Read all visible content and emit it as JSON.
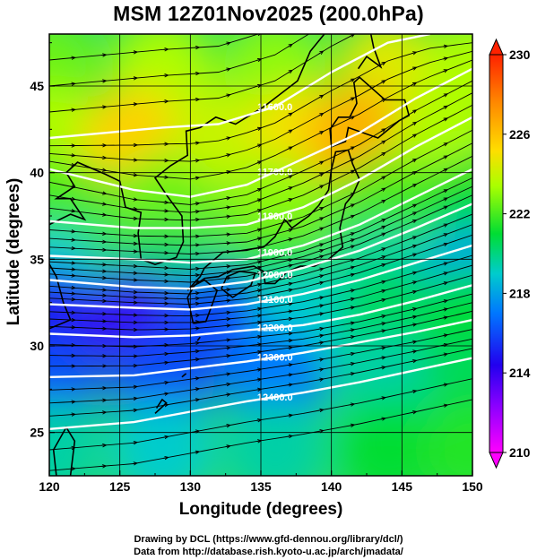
{
  "title": "MSM 12Z01Nov2025 (200.0hPa)",
  "credits": {
    "line1": "Drawing by DCL (https://www.gfd-dennou.org/library/dcl/)",
    "line2": "Data from http://database.rish.kyoto-u.ac.jp/arch/jmadata/"
  },
  "chart_data": {
    "type": "heatmap",
    "title": "MSM 12Z01Nov2025 (200.0hPa)",
    "xlabel": "Longitude (degrees)",
    "ylabel": "Latitude  (degrees)",
    "xlim": [
      120,
      150
    ],
    "ylim": [
      22.5,
      48
    ],
    "xticks": [
      "120",
      "125",
      "130",
      "135",
      "140",
      "145",
      "150"
    ],
    "yticks": [
      "25",
      "30",
      "35",
      "40",
      "45"
    ],
    "grid": true,
    "colorbar": {
      "min": 210,
      "max": 230,
      "ticks": [
        "210",
        "214",
        "218",
        "222",
        "226",
        "230"
      ],
      "colors": [
        "#ff00ff",
        "#2200ff",
        "#0088ff",
        "#00ddcc",
        "#00dd33",
        "#aaff00",
        "#ffdd00",
        "#ff8800",
        "#ff2200"
      ]
    },
    "contours": [
      {
        "label": "11600.0",
        "lat_at_lon": [
          [
            120,
            42.0
          ],
          [
            128,
            42.6
          ],
          [
            132,
            42.8
          ],
          [
            136,
            43.8
          ],
          [
            140,
            45.8
          ],
          [
            144,
            47.5
          ],
          [
            147,
            48
          ]
        ]
      },
      {
        "label": "11700.0",
        "lat_at_lon": [
          [
            120,
            40.2
          ],
          [
            126,
            39.0
          ],
          [
            130,
            38.6
          ],
          [
            134,
            39.3
          ],
          [
            138,
            40.8
          ],
          [
            142,
            42.3
          ],
          [
            146,
            44.3
          ],
          [
            150,
            46.0
          ]
        ]
      },
      {
        "label": "11800.0",
        "lat_at_lon": [
          [
            120,
            37.2
          ],
          [
            126,
            36.8
          ],
          [
            130,
            36.8
          ],
          [
            134,
            37.0
          ],
          [
            138,
            38.0
          ],
          [
            142,
            39.6
          ],
          [
            146,
            41.5
          ],
          [
            150,
            43.2
          ]
        ]
      },
      {
        "label": "11900.0",
        "lat_at_lon": [
          [
            120,
            35.2
          ],
          [
            126,
            35.0
          ],
          [
            130,
            34.8
          ],
          [
            134,
            35.0
          ],
          [
            138,
            35.8
          ],
          [
            142,
            37.0
          ],
          [
            146,
            38.6
          ],
          [
            150,
            40.2
          ]
        ]
      },
      {
        "label": "12000.0",
        "lat_at_lon": [
          [
            120,
            33.8
          ],
          [
            126,
            33.4
          ],
          [
            130,
            33.3
          ],
          [
            134,
            33.7
          ],
          [
            138,
            34.5
          ],
          [
            142,
            35.5
          ],
          [
            146,
            36.8
          ],
          [
            150,
            38.2
          ]
        ]
      },
      {
        "label": "12100.0",
        "lat_at_lon": [
          [
            120,
            32.4
          ],
          [
            126,
            32.2
          ],
          [
            130,
            32.1
          ],
          [
            134,
            32.4
          ],
          [
            138,
            33.0
          ],
          [
            142,
            33.8
          ],
          [
            146,
            34.8
          ],
          [
            150,
            35.8
          ]
        ]
      },
      {
        "label": "12200.0",
        "lat_at_lon": [
          [
            120,
            30.7
          ],
          [
            126,
            30.5
          ],
          [
            130,
            30.6
          ],
          [
            134,
            30.9
          ],
          [
            138,
            31.2
          ],
          [
            142,
            31.8
          ],
          [
            146,
            32.6
          ],
          [
            150,
            33.5
          ]
        ]
      },
      {
        "label": "12300.0",
        "lat_at_lon": [
          [
            120,
            28.2
          ],
          [
            126,
            28.3
          ],
          [
            130,
            28.7
          ],
          [
            134,
            29.1
          ],
          [
            138,
            29.6
          ],
          [
            142,
            30.2
          ],
          [
            146,
            30.8
          ],
          [
            150,
            31.5
          ]
        ]
      },
      {
        "label": "12400.0",
        "lat_at_lon": [
          [
            120,
            25.2
          ],
          [
            126,
            25.6
          ],
          [
            130,
            26.2
          ],
          [
            134,
            26.8
          ],
          [
            138,
            27.3
          ],
          [
            142,
            27.9
          ],
          [
            146,
            28.6
          ],
          [
            150,
            29.3
          ]
        ]
      }
    ],
    "temperature_field": [
      {
        "lon": 120,
        "lat": 46,
        "value": 222.5
      },
      {
        "lon": 128,
        "lat": 46,
        "value": 223.5
      },
      {
        "lon": 136,
        "lat": 46,
        "value": 223.0
      },
      {
        "lon": 144,
        "lat": 46,
        "value": 224.5
      },
      {
        "lon": 150,
        "lat": 46,
        "value": 223.5
      },
      {
        "lon": 120,
        "lat": 42,
        "value": 223.5
      },
      {
        "lon": 126,
        "lat": 42,
        "value": 225.5
      },
      {
        "lon": 132,
        "lat": 42,
        "value": 224.0
      },
      {
        "lon": 138,
        "lat": 42,
        "value": 225.0
      },
      {
        "lon": 142,
        "lat": 42,
        "value": 226.5
      },
      {
        "lon": 148,
        "lat": 42,
        "value": 223.5
      },
      {
        "lon": 120,
        "lat": 38,
        "value": 222.0
      },
      {
        "lon": 128,
        "lat": 38,
        "value": 222.5
      },
      {
        "lon": 136,
        "lat": 38,
        "value": 223.0
      },
      {
        "lon": 144,
        "lat": 38,
        "value": 222.0
      },
      {
        "lon": 150,
        "lat": 38,
        "value": 221.0
      },
      {
        "lon": 120,
        "lat": 34,
        "value": 219.0
      },
      {
        "lon": 128,
        "lat": 34,
        "value": 220.5
      },
      {
        "lon": 136,
        "lat": 34,
        "value": 221.5
      },
      {
        "lon": 144,
        "lat": 34,
        "value": 219.5
      },
      {
        "lon": 150,
        "lat": 34,
        "value": 218.0
      },
      {
        "lon": 120,
        "lat": 31.5,
        "value": 214.5
      },
      {
        "lon": 126,
        "lat": 31.5,
        "value": 214.0
      },
      {
        "lon": 132,
        "lat": 31.5,
        "value": 216.0
      },
      {
        "lon": 138,
        "lat": 31.5,
        "value": 219.0
      },
      {
        "lon": 144,
        "lat": 31.5,
        "value": 220.5
      },
      {
        "lon": 150,
        "lat": 31.5,
        "value": 221.0
      },
      {
        "lon": 120,
        "lat": 28,
        "value": 216.0
      },
      {
        "lon": 128,
        "lat": 28,
        "value": 216.0
      },
      {
        "lon": 136,
        "lat": 28,
        "value": 217.0
      },
      {
        "lon": 144,
        "lat": 28,
        "value": 219.5
      },
      {
        "lon": 150,
        "lat": 28,
        "value": 220.5
      },
      {
        "lon": 120,
        "lat": 24,
        "value": 219.5
      },
      {
        "lon": 128,
        "lat": 24,
        "value": 219.0
      },
      {
        "lon": 136,
        "lat": 24,
        "value": 219.5
      },
      {
        "lon": 144,
        "lat": 24,
        "value": 221.0
      },
      {
        "lon": 150,
        "lat": 24,
        "value": 221.5
      }
    ]
  }
}
